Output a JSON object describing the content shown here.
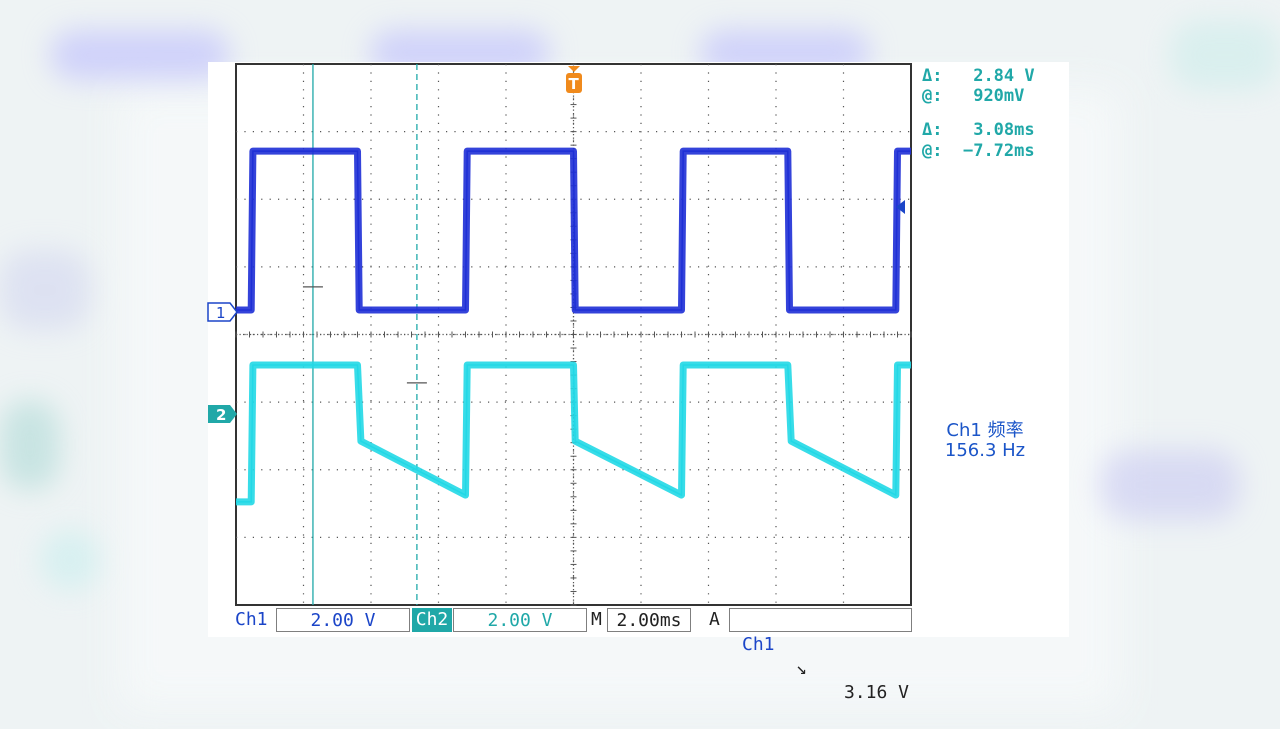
{
  "colors": {
    "ch1": "#1e2fd6",
    "ch2": "#22d8e6",
    "readout": "#20a8a8",
    "trigger": "#f08a1c",
    "grid": "#333333"
  },
  "readouts": {
    "volt_delta_label": "Δ:",
    "volt_delta_value": "2.84 V",
    "volt_at_label": "@:",
    "volt_at_value": "920mV",
    "time_delta_label": "Δ:",
    "time_delta_value": "3.08ms",
    "time_at_label": "@:",
    "time_at_value": "−7.72ms"
  },
  "measurement": {
    "label": "Ch1 频率",
    "value": "156.3 Hz"
  },
  "markers": {
    "ch1": "1",
    "ch2": "2",
    "trigger": "T"
  },
  "status_bar": {
    "ch1_label": "Ch1",
    "ch1_scale": "2.00 V",
    "ch2_label": "Ch2",
    "ch2_scale": "2.00 V",
    "timebase_prefix": "M",
    "timebase": "2.00ms",
    "trigger_mode": "A",
    "trigger_source": "Ch1",
    "trigger_slope": "↘",
    "trigger_level": "3.16 V"
  },
  "chart_data": {
    "type": "line",
    "grid": true,
    "divisions": {
      "x": 10,
      "y": 8
    },
    "x_unit": "ms",
    "xlim": [
      -10,
      10
    ],
    "series": [
      {
        "name": "Ch1",
        "points": [
          [
            -10,
            0
          ],
          [
            -9.55,
            0
          ],
          [
            -9.5,
            4.7
          ],
          [
            -6.4,
            4.7
          ],
          [
            -6.35,
            0
          ],
          [
            -3.2,
            0
          ],
          [
            -3.15,
            4.7
          ],
          [
            0,
            4.7
          ],
          [
            0.05,
            0
          ],
          [
            3.2,
            0
          ],
          [
            3.25,
            4.7
          ],
          [
            6.35,
            4.7
          ],
          [
            6.4,
            0
          ],
          [
            9.55,
            0
          ],
          [
            9.6,
            4.7
          ],
          [
            10,
            4.7
          ]
        ]
      },
      {
        "name": "Ch2",
        "points": [
          [
            -10,
            -2.6
          ],
          [
            -9.55,
            -2.6
          ],
          [
            -9.5,
            1.45
          ],
          [
            -6.4,
            1.45
          ],
          [
            -6.3,
            -0.8
          ],
          [
            -3.2,
            -2.4
          ],
          [
            -3.15,
            1.45
          ],
          [
            0,
            1.45
          ],
          [
            0.05,
            -0.8
          ],
          [
            3.2,
            -2.4
          ],
          [
            3.25,
            1.45
          ],
          [
            6.35,
            1.45
          ],
          [
            6.45,
            -0.8
          ],
          [
            9.55,
            -2.4
          ],
          [
            9.6,
            1.45
          ],
          [
            10,
            1.45
          ]
        ]
      }
    ],
    "cursors": {
      "time_ms": [
        -7.72,
        -4.64
      ],
      "ch2_voltage_v": [
        3.76,
        0.92
      ]
    }
  }
}
